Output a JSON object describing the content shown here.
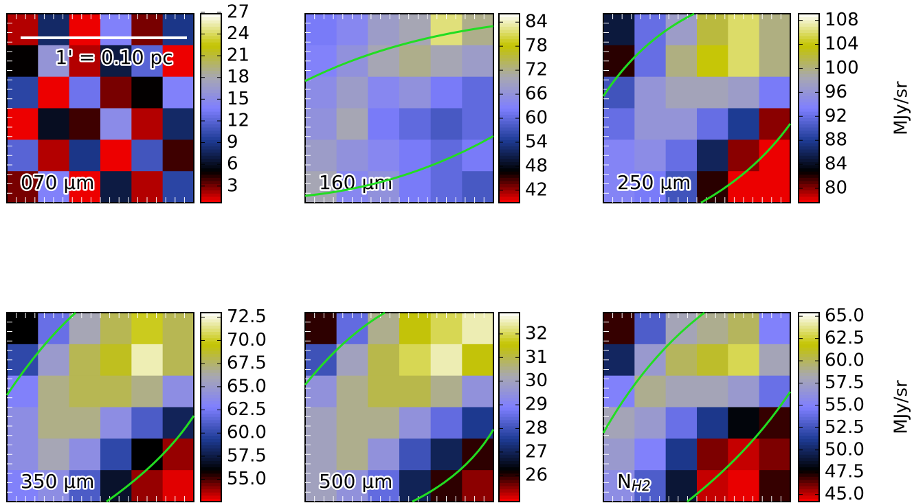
{
  "chart_data": [
    {
      "type": "heatmap",
      "label": "070 μm",
      "scalebar": "1' = 0.10 pc",
      "clim": [
        0.7,
        26.8
      ],
      "cticks": [
        3,
        6,
        9,
        12,
        15,
        18,
        21,
        24,
        27
      ],
      "colormap": [
        "#ff0000",
        "#000000",
        "#1e3c96",
        "#7f7fff",
        "#a8a8b0",
        "#c4c400",
        "#ffffff"
      ],
      "z": [
        [
          2,
          8,
          1,
          14,
          3,
          9
        ],
        [
          5,
          16,
          2,
          7,
          12,
          1
        ],
        [
          10,
          1,
          13,
          3,
          5,
          14
        ],
        [
          1,
          6,
          4,
          15,
          2,
          8
        ],
        [
          12,
          2,
          9,
          1,
          11,
          4
        ],
        [
          3,
          14,
          1,
          7,
          2,
          10
        ]
      ]
    },
    {
      "type": "heatmap",
      "label": "160 μm",
      "clim": [
        38.9,
        86.1
      ],
      "cticks": [
        42,
        48,
        54,
        60,
        66,
        72,
        78,
        84
      ],
      "colormap": [
        "#ff0000",
        "#000000",
        "#1e3c96",
        "#7f7fff",
        "#a8a8b0",
        "#c4c400",
        "#ffffff"
      ],
      "z": [
        [
          62,
          64,
          68,
          70,
          82,
          72
        ],
        [
          63,
          66,
          70,
          72,
          70,
          68
        ],
        [
          65,
          68,
          64,
          66,
          62,
          60
        ],
        [
          66,
          70,
          62,
          60,
          58,
          60
        ],
        [
          68,
          66,
          64,
          62,
          60,
          62
        ],
        [
          70,
          64,
          66,
          62,
          60,
          58
        ]
      ]
    },
    {
      "type": "heatmap",
      "label": "250 μm",
      "colorbar_label": "MJy/sr",
      "clim": [
        77.6,
        109.1
      ],
      "cticks": [
        80,
        84,
        88,
        92,
        96,
        100,
        104,
        108
      ],
      "colormap": [
        "#ff0000",
        "#000000",
        "#1e3c96",
        "#7f7fff",
        "#a8a8b0",
        "#c4c400",
        "#ffffff"
      ],
      "z": [
        [
          85,
          92,
          97,
          102,
          106,
          100
        ],
        [
          82,
          92,
          100,
          104,
          106,
          100
        ],
        [
          90,
          96,
          98,
          98,
          97,
          93
        ],
        [
          92,
          96,
          96,
          92,
          88,
          80
        ],
        [
          94,
          95,
          92,
          86,
          80,
          78
        ],
        [
          94,
          93,
          90,
          82,
          78,
          78
        ]
      ]
    },
    {
      "type": "heatmap",
      "label": "350 μm",
      "clim": [
        52.6,
        73.0
      ],
      "cticks": [
        {
          "value": 55,
          "label": "55.0"
        },
        57.5,
        {
          "value": 60,
          "label": "60.0"
        },
        62.5,
        {
          "value": 65,
          "label": "65.0"
        },
        67.5,
        {
          "value": 70,
          "label": "70.0"
        },
        72.5
      ],
      "colormap": [
        "#ff0000",
        "#000000",
        "#1e3c96",
        "#7f7fff",
        "#a8a8b0",
        "#c4c400",
        "#ffffff"
      ],
      "z": [
        [
          56,
          62,
          66,
          68,
          70,
          68
        ],
        [
          60,
          65,
          68,
          69,
          72,
          68
        ],
        [
          63,
          67,
          68,
          68,
          67,
          64
        ],
        [
          64,
          67,
          67,
          64,
          61,
          58
        ],
        [
          64,
          66,
          64,
          60,
          56,
          54
        ],
        [
          63,
          64,
          61,
          57,
          54,
          53
        ]
      ]
    },
    {
      "type": "heatmap",
      "label": "500 μm",
      "clim": [
        24.9,
        32.9
      ],
      "cticks": [
        26,
        27,
        28,
        29,
        30,
        31,
        32
      ],
      "colormap": [
        "#ff0000",
        "#000000",
        "#1e3c96",
        "#7f7fff",
        "#a8a8b0",
        "#c4c400",
        "#ffffff"
      ],
      "z": [
        [
          26,
          28.5,
          30.5,
          31.5,
          32,
          32.5
        ],
        [
          28,
          30,
          31,
          32,
          32.5,
          31.5
        ],
        [
          29.5,
          30.5,
          31,
          31,
          30.5,
          29.5
        ],
        [
          30,
          30.5,
          30.5,
          29.5,
          28.5,
          27.5
        ],
        [
          30,
          30.5,
          29.5,
          28,
          27,
          26
        ],
        [
          30,
          29.5,
          28.5,
          27,
          26,
          25.5
        ]
      ]
    },
    {
      "type": "heatmap",
      "label": "N",
      "label_sub": "H2",
      "colorbar_label": "MJy/sr",
      "clim": [
        44.2,
        65.4
      ],
      "cticks": [
        {
          "value": 45,
          "label": "45.0"
        },
        47.5,
        {
          "value": 50,
          "label": "50.0"
        },
        52.5,
        {
          "value": 55,
          "label": "55.0"
        },
        57.5,
        {
          "value": 60,
          "label": "60.0"
        },
        62.5,
        {
          "value": 65,
          "label": "65.0"
        }
      ],
      "colormap": [
        "#ff0000",
        "#000000",
        "#1e3c96",
        "#7f7fff",
        "#a8a8b0",
        "#c4c400",
        "#ffffff"
      ],
      "z": [
        [
          47,
          53,
          58,
          59,
          60,
          55
        ],
        [
          50,
          57,
          60,
          61,
          63,
          58
        ],
        [
          55,
          59,
          58,
          58,
          57,
          54
        ],
        [
          58,
          57,
          54,
          51,
          48,
          47
        ],
        [
          57,
          55,
          51,
          46,
          45,
          46
        ],
        [
          56,
          53,
          49,
          45,
          44.5,
          47
        ]
      ]
    }
  ]
}
